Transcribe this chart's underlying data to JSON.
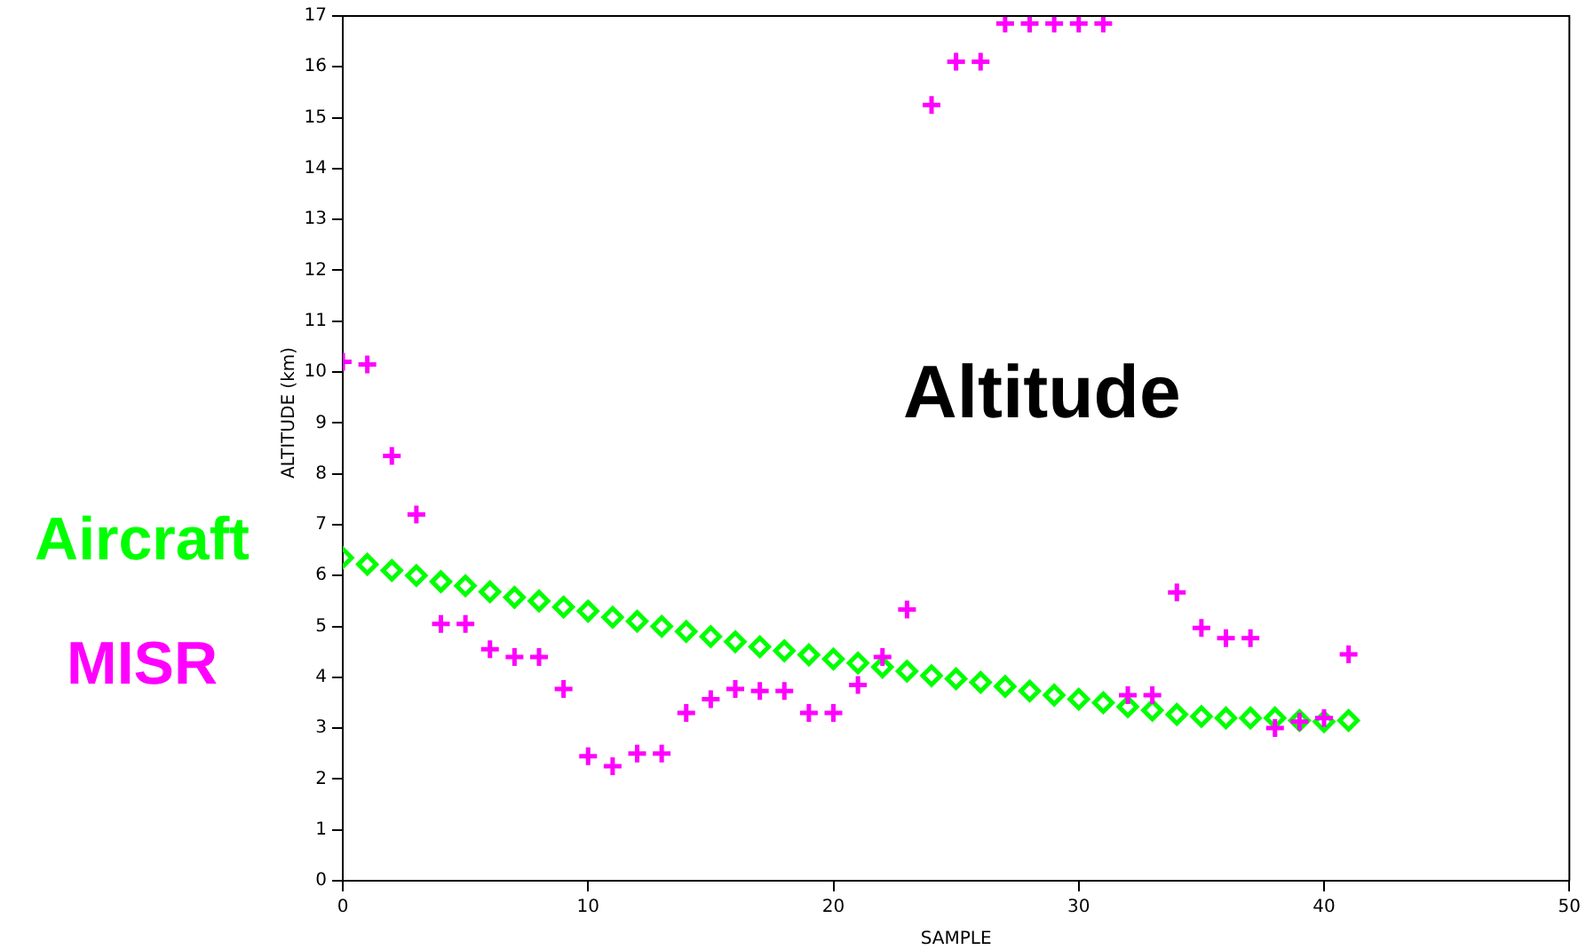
{
  "chart_data": {
    "type": "scatter",
    "title": "Altitude",
    "xlabel": "SAMPLE",
    "ylabel": "ALTITUDE (km)",
    "x": [
      0,
      1,
      2,
      3,
      4,
      5,
      6,
      7,
      8,
      9,
      10,
      11,
      12,
      13,
      14,
      15,
      16,
      17,
      18,
      19,
      20,
      21,
      22,
      23,
      24,
      25,
      26,
      27,
      28,
      29,
      30,
      31,
      32,
      33,
      34,
      35,
      36,
      37,
      38,
      39,
      40,
      41
    ],
    "series": [
      {
        "name": "Aircraft",
        "color": "#00ff00",
        "marker": "diamond",
        "values": [
          6.35,
          6.22,
          6.1,
          6.0,
          5.88,
          5.8,
          5.68,
          5.57,
          5.5,
          5.38,
          5.3,
          5.18,
          5.1,
          5.0,
          4.9,
          4.8,
          4.7,
          4.6,
          4.52,
          4.44,
          4.36,
          4.28,
          4.2,
          4.12,
          4.03,
          3.97,
          3.9,
          3.82,
          3.73,
          3.65,
          3.57,
          3.5,
          3.42,
          3.35,
          3.27,
          3.23,
          3.2,
          3.2,
          3.2,
          3.15,
          3.13,
          3.15
        ]
      },
      {
        "name": "MISR",
        "color": "#ff00ff",
        "marker": "cross",
        "values": [
          10.2,
          10.15,
          8.35,
          7.2,
          5.05,
          5.05,
          4.55,
          4.4,
          4.4,
          3.77,
          2.45,
          2.25,
          2.5,
          2.5,
          3.3,
          3.57,
          3.77,
          3.73,
          3.73,
          3.3,
          3.3,
          3.85,
          4.4,
          5.33,
          15.25,
          16.1,
          16.1,
          16.85,
          16.85,
          16.85,
          16.85,
          16.85,
          3.65,
          3.65,
          5.67,
          4.97,
          4.77,
          4.77,
          3.0,
          3.13,
          3.2,
          4.45
        ]
      }
    ],
    "xlim": [
      0,
      50
    ],
    "xticks": [
      0,
      10,
      20,
      30,
      40,
      50
    ],
    "ylim": [
      0,
      17
    ],
    "yticks": [
      0,
      1,
      2,
      3,
      4,
      5,
      6,
      7,
      8,
      9,
      10,
      11,
      12,
      13,
      14,
      15,
      16,
      17
    ],
    "grid": false,
    "legend": "left"
  }
}
